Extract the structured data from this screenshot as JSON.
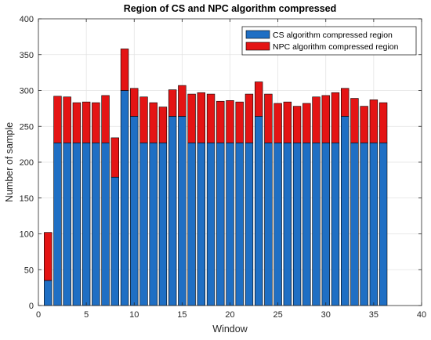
{
  "chart_data": {
    "type": "bar",
    "stacked": true,
    "title": "Region of CS and NPC algorithm compressed",
    "xlabel": "Window",
    "ylabel": "Number of sample",
    "xlim": [
      0,
      40
    ],
    "ylim": [
      0,
      400
    ],
    "xticks": [
      0,
      5,
      10,
      15,
      20,
      25,
      30,
      35,
      40
    ],
    "yticks": [
      0,
      50,
      100,
      150,
      200,
      250,
      300,
      350,
      400
    ],
    "grid": true,
    "legend_position": "top-right",
    "x": [
      1,
      2,
      3,
      4,
      5,
      6,
      7,
      8,
      9,
      10,
      11,
      12,
      13,
      14,
      15,
      16,
      17,
      18,
      19,
      20,
      21,
      22,
      23,
      24,
      25,
      26,
      27,
      28,
      29,
      30,
      31,
      32,
      33,
      34,
      35,
      36
    ],
    "series": [
      {
        "name": "CS algorithm compressed region",
        "color": "#1f6fc4",
        "values": [
          35,
          227,
          227,
          227,
          227,
          227,
          227,
          179,
          300,
          264,
          227,
          227,
          227,
          264,
          264,
          227,
          227,
          227,
          227,
          227,
          227,
          227,
          264,
          227,
          227,
          227,
          227,
          227,
          227,
          227,
          227,
          264,
          227,
          227,
          227,
          227
        ]
      },
      {
        "name": "NPC algorithm compressed region",
        "color": "#e41414",
        "values": [
          67,
          65,
          64,
          56,
          57,
          56,
          66,
          55,
          58,
          39,
          64,
          56,
          50,
          37,
          43,
          68,
          70,
          68,
          58,
          59,
          57,
          68,
          48,
          68,
          55,
          57,
          51,
          55,
          64,
          66,
          70,
          39,
          62,
          51,
          60,
          56
        ]
      }
    ]
  }
}
